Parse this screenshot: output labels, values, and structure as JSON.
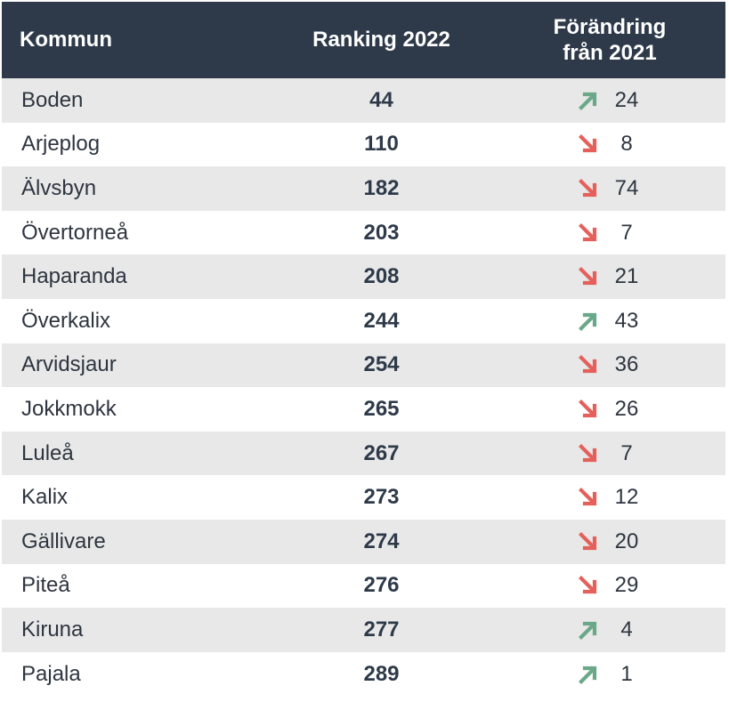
{
  "header": {
    "kommun": "Kommun",
    "ranking": "Ranking 2022",
    "change_line1": "Förändring",
    "change_line2": "från 2021"
  },
  "colors": {
    "up": "#6aa888",
    "down": "#e5605a",
    "header_bg": "#2e3a49",
    "stripe": "#e8e8e8"
  },
  "rows": [
    {
      "kommun": "Boden",
      "ranking": "44",
      "direction": "up",
      "change": "24"
    },
    {
      "kommun": "Arjeplog",
      "ranking": "110",
      "direction": "down",
      "change": "8"
    },
    {
      "kommun": "Älvsbyn",
      "ranking": "182",
      "direction": "down",
      "change": "74"
    },
    {
      "kommun": "Övertorneå",
      "ranking": "203",
      "direction": "down",
      "change": "7"
    },
    {
      "kommun": "Haparanda",
      "ranking": "208",
      "direction": "down",
      "change": "21"
    },
    {
      "kommun": "Överkalix",
      "ranking": "244",
      "direction": "up",
      "change": "43"
    },
    {
      "kommun": "Arvidsjaur",
      "ranking": "254",
      "direction": "down",
      "change": "36"
    },
    {
      "kommun": "Jokkmokk",
      "ranking": "265",
      "direction": "down",
      "change": "26"
    },
    {
      "kommun": "Luleå",
      "ranking": "267",
      "direction": "down",
      "change": "7"
    },
    {
      "kommun": "Kalix",
      "ranking": "273",
      "direction": "down",
      "change": "12"
    },
    {
      "kommun": "Gällivare",
      "ranking": "274",
      "direction": "down",
      "change": "20"
    },
    {
      "kommun": "Piteå",
      "ranking": "276",
      "direction": "down",
      "change": "29"
    },
    {
      "kommun": "Kiruna",
      "ranking": "277",
      "direction": "up",
      "change": "4"
    },
    {
      "kommun": "Pajala",
      "ranking": "289",
      "direction": "up",
      "change": "1"
    }
  ]
}
